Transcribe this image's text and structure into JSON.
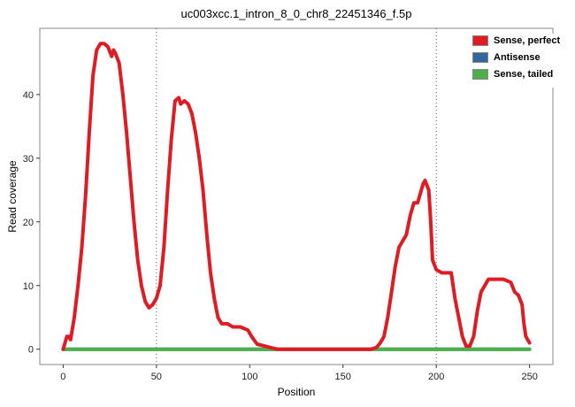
{
  "chart_data": {
    "type": "line",
    "title": "uc003xcc.1_intron_8_0_chr8_22451346_f.5p",
    "xlabel": "Position",
    "ylabel": "Read coverage",
    "xlim": [
      0,
      250
    ],
    "ylim": [
      0,
      48
    ],
    "x_ticks": [
      0,
      50,
      100,
      150,
      200,
      250
    ],
    "y_ticks": [
      0,
      10,
      20,
      30,
      40
    ],
    "vlines": [
      50,
      200
    ],
    "vline_style": "dotted",
    "grid": false,
    "legend_position": "top-right",
    "panel_border_color": "#888888",
    "vline_color": "#555555",
    "series": [
      {
        "name": "Antisense",
        "color": "#33669b",
        "points": [
          [
            0,
            0
          ],
          [
            250,
            0
          ]
        ]
      },
      {
        "name": "Sense, tailed",
        "color": "#4daf4a",
        "points": [
          [
            0,
            0
          ],
          [
            250,
            0
          ]
        ]
      },
      {
        "name": "Sense, perfect",
        "color": "#df1b24",
        "points": [
          [
            0,
            0
          ],
          [
            2,
            2
          ],
          [
            3,
            2
          ],
          [
            4,
            1.5
          ],
          [
            6,
            5
          ],
          [
            8,
            10
          ],
          [
            10,
            16
          ],
          [
            12,
            24
          ],
          [
            14,
            34
          ],
          [
            16,
            43
          ],
          [
            18,
            47
          ],
          [
            20,
            48
          ],
          [
            22,
            48
          ],
          [
            24,
            47.5
          ],
          [
            26,
            46
          ],
          [
            27,
            47
          ],
          [
            28,
            46.5
          ],
          [
            30,
            45
          ],
          [
            32,
            40
          ],
          [
            34,
            34
          ],
          [
            36,
            27
          ],
          [
            38,
            20
          ],
          [
            40,
            14
          ],
          [
            42,
            10
          ],
          [
            44,
            7.5
          ],
          [
            46,
            6.5
          ],
          [
            48,
            7
          ],
          [
            50,
            8
          ],
          [
            52,
            10
          ],
          [
            54,
            16
          ],
          [
            56,
            25
          ],
          [
            58,
            33
          ],
          [
            60,
            39
          ],
          [
            62,
            39.5
          ],
          [
            63,
            38.5
          ],
          [
            65,
            39
          ],
          [
            67,
            38.5
          ],
          [
            69,
            37
          ],
          [
            71,
            34
          ],
          [
            73,
            30
          ],
          [
            75,
            25
          ],
          [
            77,
            18
          ],
          [
            79,
            12
          ],
          [
            81,
            8
          ],
          [
            83,
            5
          ],
          [
            85,
            4
          ],
          [
            88,
            4
          ],
          [
            91,
            3.5
          ],
          [
            95,
            3.5
          ],
          [
            99,
            3
          ],
          [
            101,
            2
          ],
          [
            104,
            0.8
          ],
          [
            108,
            0.5
          ],
          [
            112,
            0.2
          ],
          [
            115,
            0
          ],
          [
            125,
            0
          ],
          [
            135,
            0
          ],
          [
            145,
            0
          ],
          [
            155,
            0
          ],
          [
            165,
            0
          ],
          [
            168,
            0.3
          ],
          [
            170,
            1
          ],
          [
            172,
            2
          ],
          [
            174,
            5
          ],
          [
            176,
            9
          ],
          [
            178,
            13
          ],
          [
            180,
            16
          ],
          [
            182,
            17
          ],
          [
            184,
            18
          ],
          [
            186,
            21
          ],
          [
            188,
            23
          ],
          [
            190,
            23
          ],
          [
            192,
            25
          ],
          [
            193,
            26
          ],
          [
            194,
            26.5
          ],
          [
            196,
            25
          ],
          [
            197,
            20
          ],
          [
            198,
            14
          ],
          [
            200,
            12.5
          ],
          [
            203,
            12
          ],
          [
            206,
            12
          ],
          [
            208,
            12
          ],
          [
            210,
            8
          ],
          [
            212,
            5
          ],
          [
            214,
            2
          ],
          [
            216,
            0.5
          ],
          [
            218,
            0.5
          ],
          [
            220,
            2
          ],
          [
            222,
            6
          ],
          [
            224,
            9
          ],
          [
            226,
            10
          ],
          [
            228,
            11
          ],
          [
            232,
            11
          ],
          [
            236,
            11
          ],
          [
            240,
            10.5
          ],
          [
            242,
            9
          ],
          [
            244,
            8.5
          ],
          [
            246,
            7
          ],
          [
            247,
            4
          ],
          [
            248,
            2
          ],
          [
            250,
            1
          ]
        ]
      }
    ],
    "legend_order": [
      "Sense, perfect",
      "Antisense",
      "Sense, tailed"
    ]
  }
}
